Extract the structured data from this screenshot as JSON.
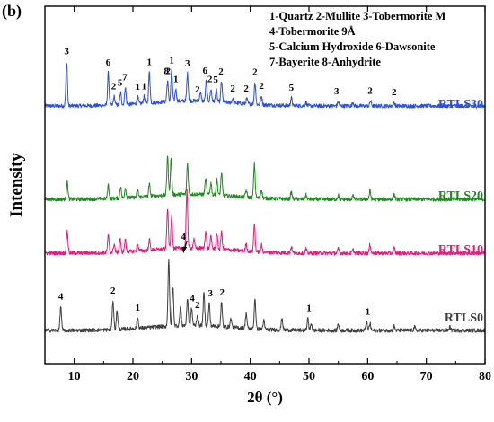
{
  "chart_data": {
    "panel_label": "(b)",
    "type": "line",
    "xlabel": "2θ (°)",
    "ylabel": "Intensity",
    "xlim": [
      5,
      80
    ],
    "xticks": [
      10,
      20,
      30,
      40,
      50,
      60,
      70,
      80
    ],
    "grid": false,
    "legend_lines": [
      "1-Quartz 2-Mullite 3-Tobermorite M",
      "4-Tobermorite 9Å",
      "5-Calcium Hydroxide 6-Dawsonite",
      "7-Bayerite  8-Anhydrite"
    ],
    "series": [
      {
        "name": "RTLS30",
        "color": "#2b4fe0",
        "baseline": 12,
        "peaks": [
          [
            8.7,
            52
          ],
          [
            15.8,
            38
          ],
          [
            16.8,
            10
          ],
          [
            17.9,
            14
          ],
          [
            18.7,
            20
          ],
          [
            20.8,
            8
          ],
          [
            21.9,
            8
          ],
          [
            22.8,
            36
          ],
          [
            25.9,
            24
          ],
          [
            26.6,
            36
          ],
          [
            27.3,
            14
          ],
          [
            29.3,
            32
          ],
          [
            31.5,
            10
          ],
          [
            32.5,
            24
          ],
          [
            33.3,
            14
          ],
          [
            34.2,
            14
          ],
          [
            35.1,
            24
          ],
          [
            37.0,
            5
          ],
          [
            39.4,
            6
          ],
          [
            40.8,
            26
          ],
          [
            41.9,
            10
          ],
          [
            47.0,
            9
          ],
          [
            49.5,
            4
          ],
          [
            55.0,
            5
          ],
          [
            57.5,
            4
          ],
          [
            60.5,
            6
          ],
          [
            64.5,
            4
          ]
        ],
        "markers": [
          {
            "label": "3",
            "x": 8.7
          },
          {
            "label": "6",
            "x": 15.8
          },
          {
            "label": "2",
            "x": 16.7
          },
          {
            "label": "5",
            "x": 17.8
          },
          {
            "label": "7",
            "x": 18.6
          },
          {
            "label": "1",
            "x": 20.8
          },
          {
            "label": "1",
            "x": 21.9
          },
          {
            "label": "1",
            "x": 22.8
          },
          {
            "label": "8",
            "x": 25.7
          },
          {
            "label": "2",
            "x": 26.0
          },
          {
            "label": "1",
            "x": 26.6
          },
          {
            "label": "1",
            "x": 27.3
          },
          {
            "label": "3",
            "x": 29.3
          },
          {
            "label": "2",
            "x": 31.0
          },
          {
            "label": "6",
            "x": 32.3
          },
          {
            "label": "2",
            "x": 33.1
          },
          {
            "label": "5",
            "x": 34.1
          },
          {
            "label": "2",
            "x": 35.0
          },
          {
            "label": "2",
            "x": 37.0
          },
          {
            "label": "2",
            "x": 39.3
          },
          {
            "label": "2",
            "x": 40.8
          },
          {
            "label": "2",
            "x": 41.9
          },
          {
            "label": "5",
            "x": 47.0
          },
          {
            "label": "3",
            "x": 54.7
          },
          {
            "label": "2",
            "x": 60.4
          },
          {
            "label": "2",
            "x": 64.5
          }
        ]
      },
      {
        "name": "RTLS20",
        "color": "#1f8a1f",
        "baseline": 10,
        "peaks": [
          [
            8.8,
            20
          ],
          [
            15.8,
            16
          ],
          [
            17.9,
            14
          ],
          [
            18.7,
            12
          ],
          [
            20.8,
            8
          ],
          [
            22.8,
            14
          ],
          [
            25.9,
            46
          ],
          [
            26.5,
            42
          ],
          [
            29.3,
            36
          ],
          [
            32.4,
            18
          ],
          [
            33.3,
            14
          ],
          [
            34.3,
            18
          ],
          [
            35.1,
            26
          ],
          [
            39.3,
            8
          ],
          [
            40.7,
            40
          ],
          [
            41.9,
            10
          ],
          [
            47.0,
            8
          ],
          [
            49.5,
            5
          ],
          [
            55.0,
            5
          ],
          [
            57.5,
            4
          ],
          [
            60.4,
            10
          ],
          [
            64.5,
            6
          ]
        ],
        "markers": []
      },
      {
        "name": "RTLS10",
        "color": "#e6197d",
        "baseline": 11,
        "peaks": [
          [
            8.8,
            26
          ],
          [
            15.8,
            20
          ],
          [
            16.8,
            10
          ],
          [
            17.8,
            16
          ],
          [
            18.7,
            14
          ],
          [
            20.8,
            8
          ],
          [
            22.8,
            12
          ],
          [
            25.9,
            48
          ],
          [
            26.6,
            40
          ],
          [
            29.2,
            70
          ],
          [
            30.4,
            10
          ],
          [
            32.4,
            20
          ],
          [
            33.3,
            14
          ],
          [
            34.3,
            18
          ],
          [
            35.1,
            20
          ],
          [
            39.3,
            8
          ],
          [
            40.7,
            32
          ],
          [
            41.9,
            8
          ],
          [
            47.0,
            7
          ],
          [
            49.5,
            5
          ],
          [
            55.0,
            5
          ],
          [
            57.5,
            4
          ],
          [
            60.4,
            10
          ],
          [
            64.5,
            6
          ]
        ],
        "markers": [
          {
            "label": "4",
            "x": 28.6
          }
        ]
      },
      {
        "name": "RTLS0",
        "color": "#3f3f3f",
        "baseline": 13,
        "peaks": [
          [
            7.7,
            28
          ],
          [
            16.6,
            34
          ],
          [
            17.3,
            22
          ],
          [
            20.8,
            12
          ],
          [
            26.1,
            78
          ],
          [
            26.8,
            46
          ],
          [
            28.1,
            22
          ],
          [
            29.3,
            32
          ],
          [
            30.0,
            20
          ],
          [
            31.0,
            12
          ],
          [
            32.1,
            38
          ],
          [
            33.0,
            26
          ],
          [
            35.1,
            28
          ],
          [
            36.7,
            10
          ],
          [
            39.3,
            18
          ],
          [
            40.8,
            36
          ],
          [
            42.3,
            10
          ],
          [
            45.4,
            14
          ],
          [
            49.8,
            14
          ],
          [
            50.4,
            8
          ],
          [
            55.0,
            8
          ],
          [
            59.8,
            10
          ],
          [
            60.4,
            8
          ],
          [
            64.5,
            5
          ],
          [
            68.0,
            4
          ],
          [
            74.0,
            4
          ]
        ],
        "markers": [
          {
            "label": "4",
            "x": 7.7
          },
          {
            "label": "2",
            "x": 16.6
          },
          {
            "label": "1",
            "x": 20.8
          },
          {
            "label": "4",
            "x": 30.1
          },
          {
            "label": "2",
            "x": 31.0
          },
          {
            "label": "3",
            "x": 33.2
          },
          {
            "label": "2",
            "x": 35.2
          },
          {
            "label": "1",
            "x": 50.0
          },
          {
            "label": "1",
            "x": 60.0
          }
        ]
      }
    ]
  }
}
